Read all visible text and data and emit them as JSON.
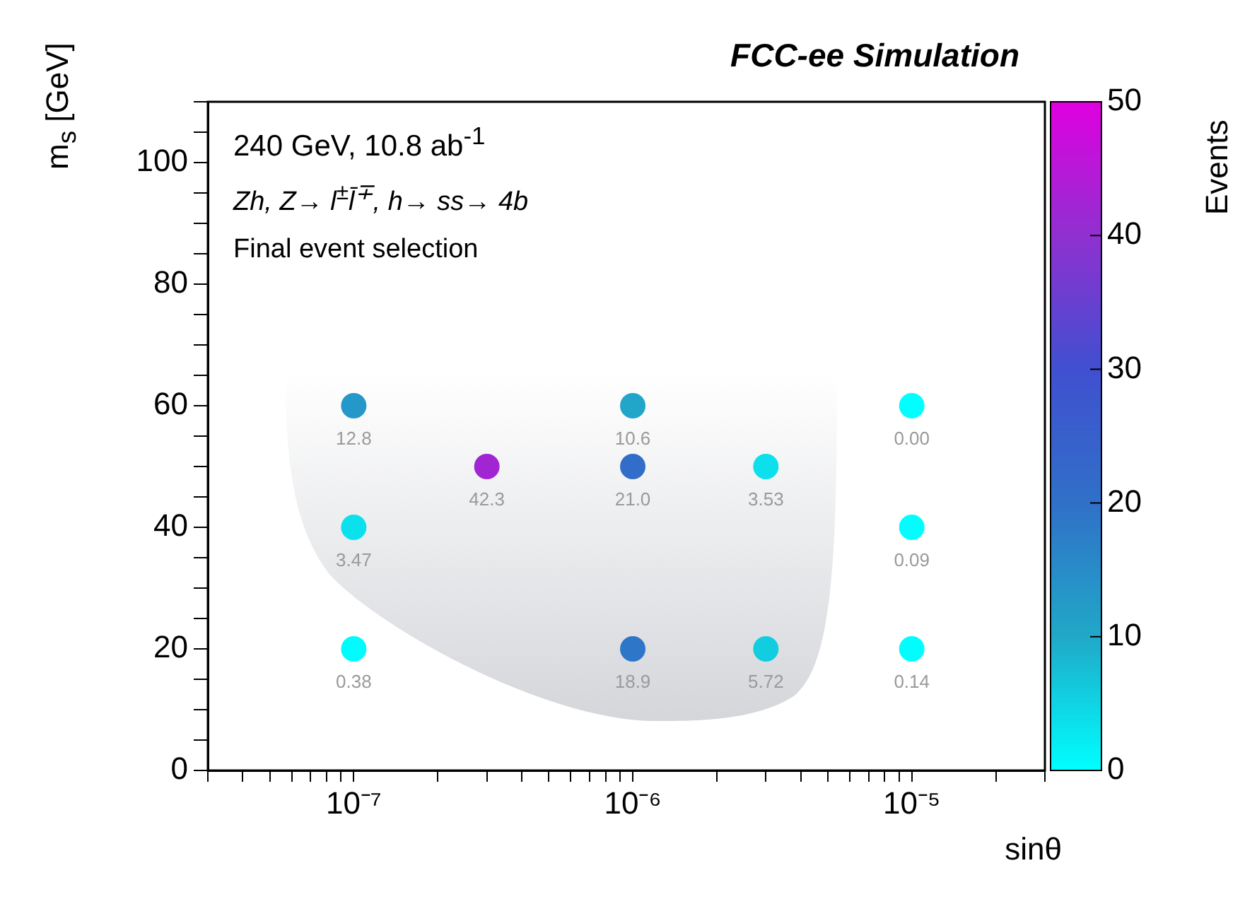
{
  "chart_data": {
    "type": "scatter",
    "title": "FCC-ee Simulation",
    "xlabel": "sinθ",
    "ylabel": "m$_{s}$ [GeV]",
    "clabel": "Events",
    "annotations": [
      "240 GeV, 10.8 ab$^{-1}$",
      "Zh, Z→ l$^{±}$l̄$^{∓}$, h→ ss→ 4b",
      "Final event selection",
      {
        "text": "12.8",
        "x": 1e-07,
        "y": 60
      },
      {
        "text": "3.47",
        "x": 1e-07,
        "y": 40
      },
      {
        "text": "0.38",
        "x": 1e-07,
        "y": 20
      },
      {
        "text": "42.3",
        "x": 3e-07,
        "y": 50
      },
      {
        "text": "10.6",
        "x": 1e-06,
        "y": 60
      },
      {
        "text": "21.0",
        "x": 1e-06,
        "y": 50
      },
      {
        "text": "18.9",
        "x": 1e-06,
        "y": 20
      },
      {
        "text": "3.53",
        "x": 3e-06,
        "y": 50
      },
      {
        "text": "5.72",
        "x": 3e-06,
        "y": 20
      },
      {
        "text": "0.00",
        "x": 1e-05,
        "y": 60
      },
      {
        "text": "0.09",
        "x": 1e-05,
        "y": 40
      },
      {
        "text": "0.14",
        "x": 1e-05,
        "y": 20
      }
    ],
    "log": "x",
    "grid": false,
    "legend": false,
    "marker": "circle",
    "x": [
      1e-07,
      1e-07,
      1e-07,
      3e-07,
      1e-06,
      1e-06,
      1e-06,
      3e-06,
      3e-06,
      1e-05,
      1e-05,
      1e-05
    ],
    "values": [
      60,
      40,
      20,
      50,
      60,
      50,
      20,
      50,
      20,
      60,
      40,
      20
    ],
    "cvalues": [
      12.8,
      3.47,
      0.38,
      42.3,
      10.6,
      21.0,
      18.9,
      3.53,
      5.72,
      0.0,
      0.09,
      0.14
    ],
    "xlim": [
      3e-08,
      3e-05
    ],
    "xticks": [
      {
        "value": 3e-08,
        "label": null
      },
      {
        "value": 4e-08,
        "label": null
      },
      {
        "value": 5e-08,
        "label": null
      },
      {
        "value": 6e-08,
        "label": null
      },
      {
        "value": 7e-08,
        "label": null
      },
      {
        "value": 8e-08,
        "label": null
      },
      {
        "value": 9e-08,
        "label": null
      },
      {
        "value": 1e-07,
        "label": "10⁻⁷"
      },
      {
        "value": 2e-07,
        "label": null
      },
      {
        "value": 3e-07,
        "label": null
      },
      {
        "value": 4e-07,
        "label": null
      },
      {
        "value": 5e-07,
        "label": null
      },
      {
        "value": 6e-07,
        "label": null
      },
      {
        "value": 7e-07,
        "label": null
      },
      {
        "value": 8e-07,
        "label": null
      },
      {
        "value": 9e-07,
        "label": null
      },
      {
        "value": 1e-06,
        "label": "10⁻⁶"
      },
      {
        "value": 2e-06,
        "label": null
      },
      {
        "value": 3e-06,
        "label": null
      },
      {
        "value": 4e-06,
        "label": null
      },
      {
        "value": 5e-06,
        "label": null
      },
      {
        "value": 6e-06,
        "label": null
      },
      {
        "value": 7e-06,
        "label": null
      },
      {
        "value": 8e-06,
        "label": null
      },
      {
        "value": 9e-06,
        "label": null
      },
      {
        "value": 1e-05,
        "label": "10⁻⁵"
      },
      {
        "value": 2e-05,
        "label": null
      },
      {
        "value": 3e-05,
        "label": null
      }
    ],
    "ylim": [
      0,
      110
    ],
    "yticks": [
      0,
      {
        "value": 5,
        "label": null
      },
      {
        "value": 10,
        "label": null
      },
      {
        "value": 15,
        "label": null
      },
      20,
      {
        "value": 25,
        "label": null
      },
      {
        "value": 30,
        "label": null
      },
      {
        "value": 35,
        "label": null
      },
      40,
      {
        "value": 45,
        "label": null
      },
      {
        "value": 50,
        "label": null
      },
      {
        "value": 55,
        "label": null
      },
      60,
      {
        "value": 65,
        "label": null
      },
      {
        "value": 70,
        "label": null
      },
      {
        "value": 75,
        "label": null
      },
      80,
      {
        "value": 85,
        "label": null
      },
      {
        "value": 90,
        "label": null
      },
      {
        "value": 95,
        "label": null
      },
      100,
      {
        "value": 105,
        "label": null
      },
      {
        "value": 110,
        "label": null
      }
    ],
    "clim": [
      0,
      50
    ],
    "cticks": [
      0,
      10,
      20,
      30,
      40,
      50
    ]
  }
}
